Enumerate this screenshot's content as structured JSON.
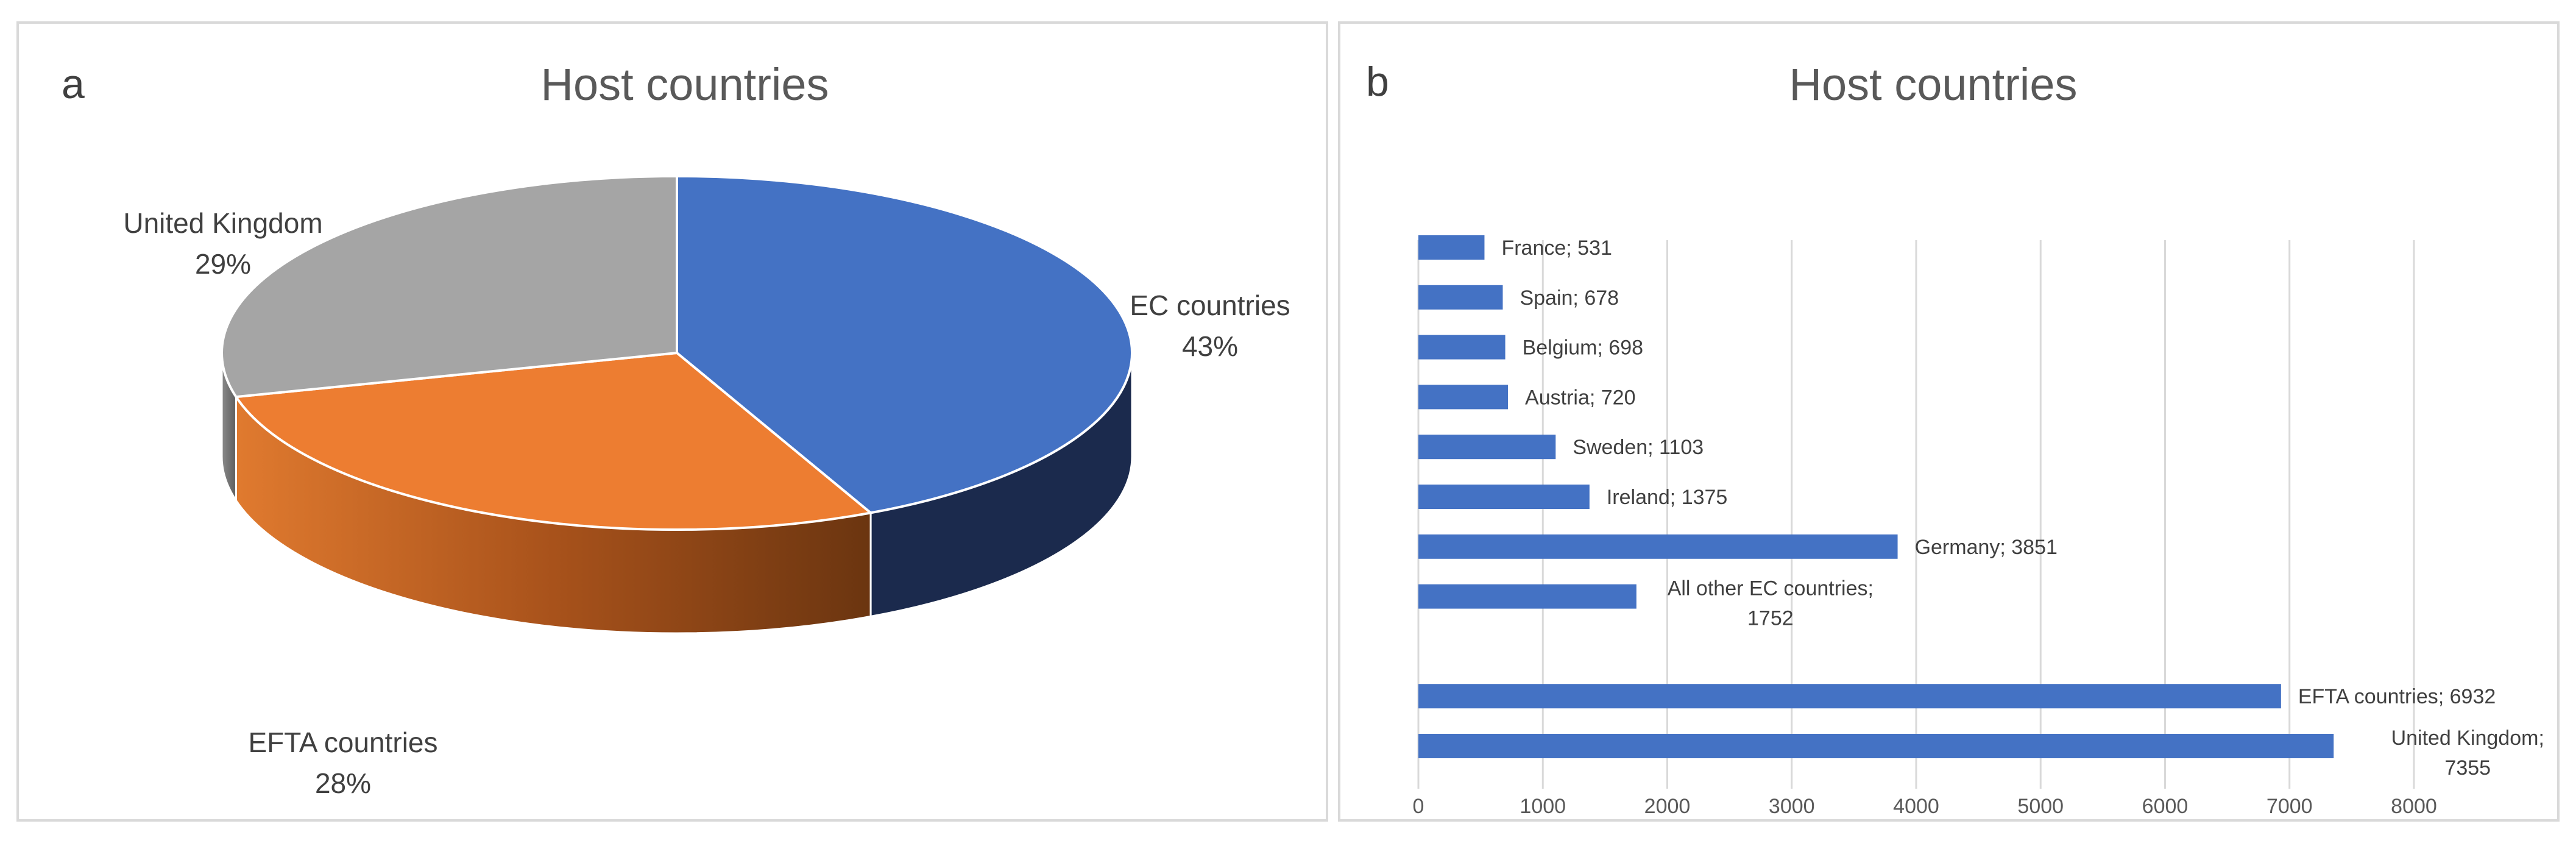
{
  "chart_data": [
    {
      "type": "pie",
      "panel_letter": "a",
      "title": "Host countries",
      "style": "3d",
      "slices": [
        {
          "label": "EC countries",
          "pct_label": "43%",
          "value": 43,
          "color": "#4472c4",
          "side_color": "#1b2a4d"
        },
        {
          "label": "EFTA countries",
          "pct_label": "28%",
          "value": 28,
          "color": "#ed7d31",
          "side_color": "#9c4a17"
        },
        {
          "label": "United Kingdom",
          "pct_label": "29%",
          "value": 29,
          "color": "#a5a5a5",
          "side_color": "#6e6e6e"
        }
      ]
    },
    {
      "type": "bar",
      "orientation": "horizontal",
      "panel_letter": "b",
      "title": "Host countries",
      "xlim": [
        0,
        8000
      ],
      "xticks": [
        "0",
        "1000",
        "2000",
        "3000",
        "4000",
        "5000",
        "6000",
        "7000",
        "8000"
      ],
      "grid": "vertical",
      "bar_color": "#4472c4",
      "bars": [
        {
          "category": "France",
          "value": 531,
          "label_lines": [
            "France; 531"
          ]
        },
        {
          "category": "Spain",
          "value": 678,
          "label_lines": [
            "Spain; 678"
          ]
        },
        {
          "category": "Belgium",
          "value": 698,
          "label_lines": [
            "Belgium; 698"
          ]
        },
        {
          "category": "Austria",
          "value": 720,
          "label_lines": [
            "Austria; 720"
          ]
        },
        {
          "category": "Sweden",
          "value": 1103,
          "label_lines": [
            "Sweden; 1103"
          ]
        },
        {
          "category": "Ireland",
          "value": 1375,
          "label_lines": [
            "Ireland; 1375"
          ]
        },
        {
          "category": "Germany",
          "value": 3851,
          "label_lines": [
            "Germany; 3851"
          ]
        },
        {
          "category": "All other EC countries",
          "value": 1752,
          "label_lines": [
            "All other EC countries;",
            "1752"
          ]
        },
        {
          "category": "",
          "value": null,
          "label_lines": []
        },
        {
          "category": "EFTA countries",
          "value": 6932,
          "label_lines": [
            "EFTA countries; 6932"
          ]
        },
        {
          "category": "United Kingdom",
          "value": 7355,
          "label_lines": [
            "United Kingdom;",
            "7355"
          ]
        }
      ]
    }
  ]
}
